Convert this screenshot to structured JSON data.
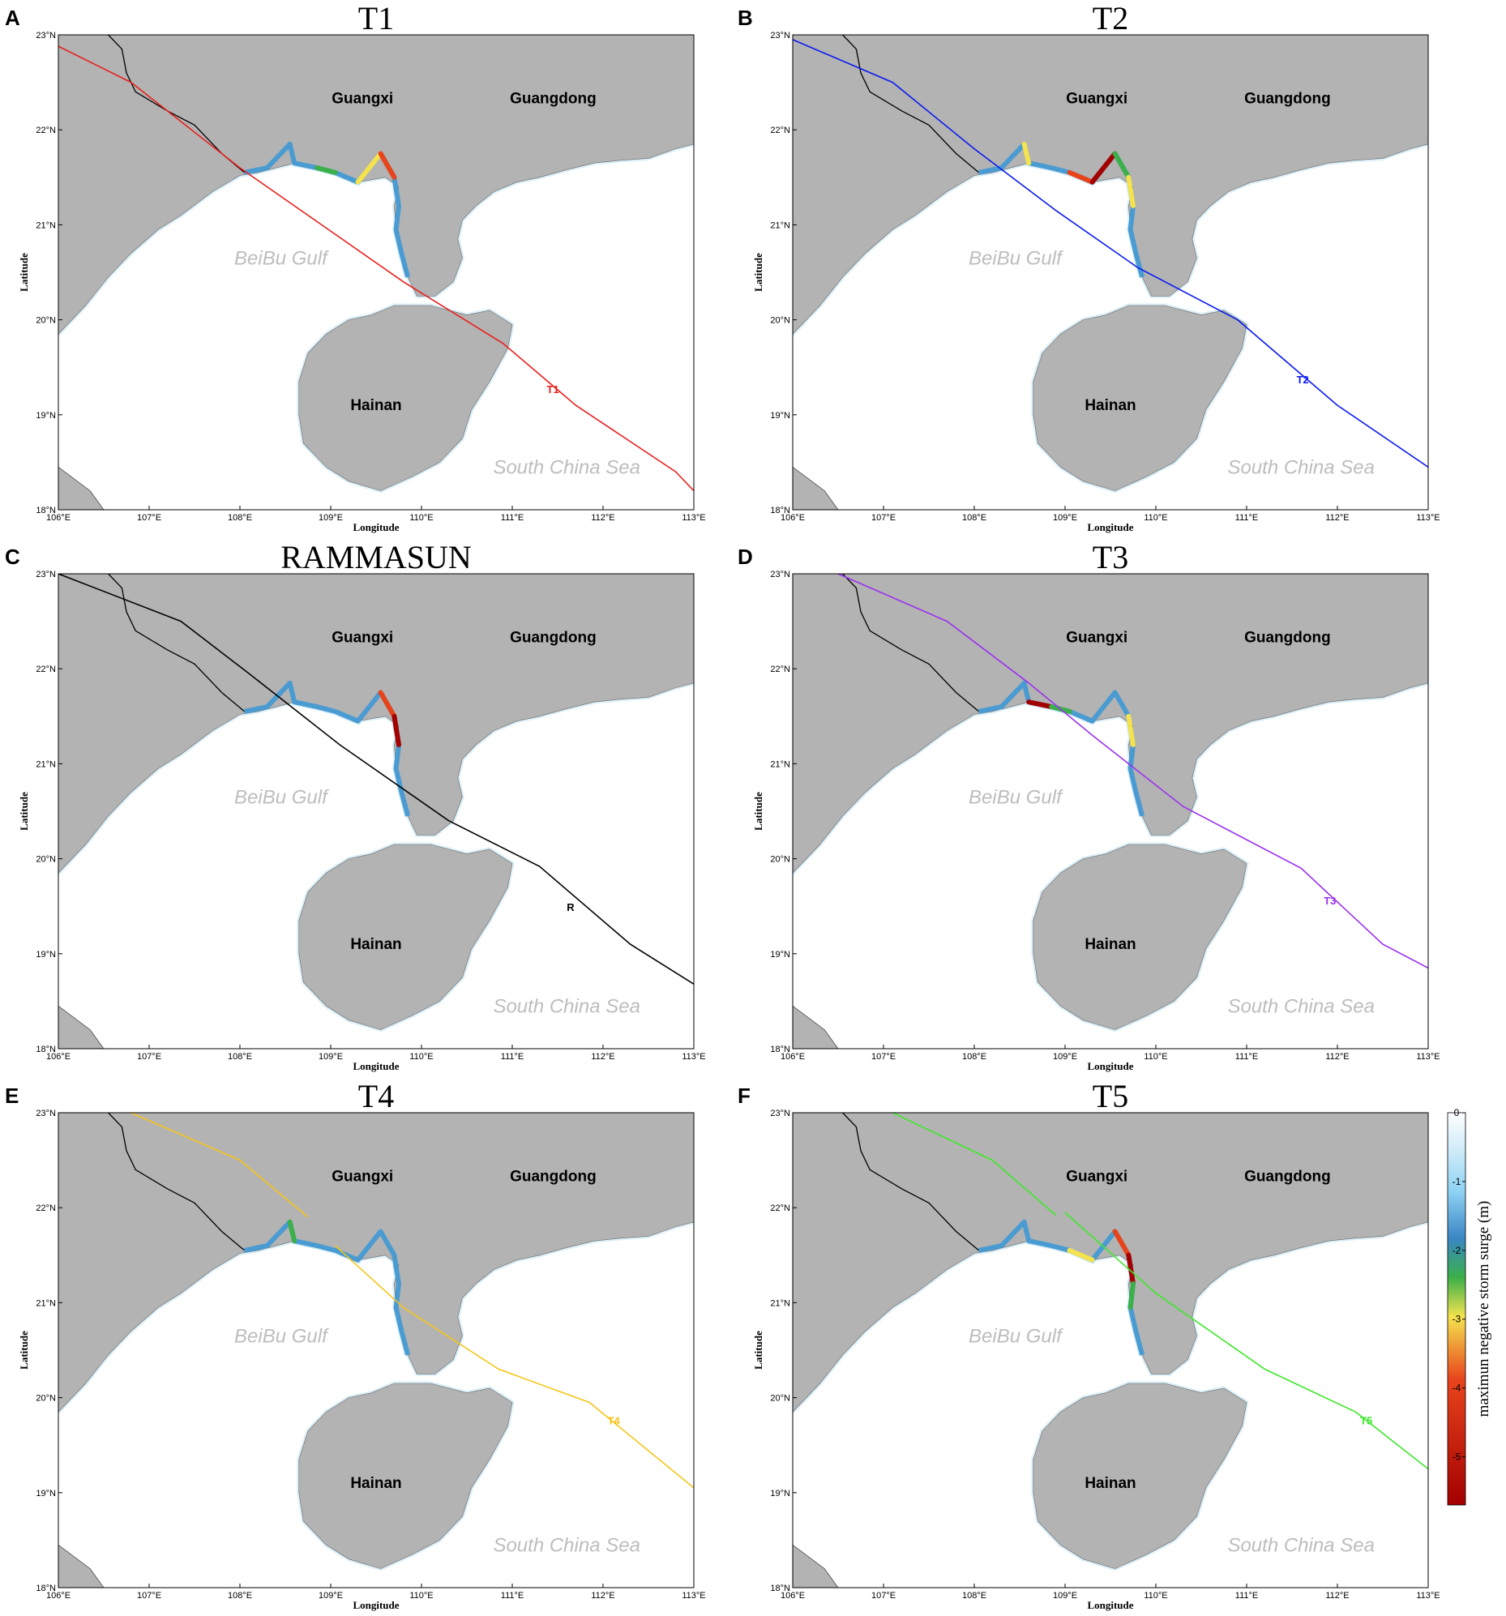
{
  "axes": {
    "x_label": "Longitude",
    "y_label": "Latitude",
    "x_ticks": [
      "106°E",
      "107°E",
      "108°E",
      "109°E",
      "110°E",
      "111°E",
      "112°E",
      "113°E"
    ],
    "y_ticks": [
      "23°N",
      "22°N",
      "21°N",
      "20°N",
      "19°N",
      "18°N"
    ],
    "lon_range": [
      106,
      113
    ],
    "lat_range": [
      18,
      23
    ]
  },
  "places": [
    {
      "name": "Guangxi",
      "lon": 109.35,
      "lat": 22.28,
      "kind": "land"
    },
    {
      "name": "Guangdong",
      "lon": 111.45,
      "lat": 22.28,
      "kind": "land"
    },
    {
      "name": "Hainan",
      "lon": 109.5,
      "lat": 19.05,
      "kind": "land"
    },
    {
      "name": "BeiBu Gulf",
      "lon": 108.45,
      "lat": 20.58,
      "kind": "sea"
    },
    {
      "name": "South China Sea",
      "lon": 111.6,
      "lat": 18.38,
      "kind": "sea"
    }
  ],
  "colors": {
    "land": "#b3b3b3",
    "sea": "#ffffff",
    "surge_shallow": "#d6eefa"
  },
  "panels": [
    {
      "letter": "A",
      "title": "T1",
      "track_label": "T1",
      "track_color": "#e8201c",
      "track_label_pos": [
        111.38,
        19.23
      ],
      "track": [
        [
          106,
          22.88
        ],
        [
          106.8,
          22.5
        ],
        [
          108,
          21.6
        ],
        [
          108.9,
          21
        ],
        [
          109.8,
          20.4
        ],
        [
          110.9,
          19.75
        ],
        [
          111.7,
          19.1
        ],
        [
          112.8,
          18.4
        ],
        [
          113,
          18.2
        ]
      ]
    },
    {
      "letter": "B",
      "title": "T2",
      "track_label": "T2",
      "track_color": "#0a1aef",
      "track_label_pos": [
        111.55,
        19.33
      ],
      "track": [
        [
          106,
          22.95
        ],
        [
          107.1,
          22.5
        ],
        [
          108,
          21.8
        ],
        [
          108.9,
          21.15
        ],
        [
          109.8,
          20.55
        ],
        [
          110.9,
          20
        ],
        [
          112,
          19.1
        ],
        [
          113,
          18.45
        ]
      ]
    },
    {
      "letter": "C",
      "title": "RAMMASUN",
      "track_label": "R",
      "track_color": "#000000",
      "track_label_pos": [
        111.6,
        19.45
      ],
      "track": [
        [
          106,
          23
        ],
        [
          107.35,
          22.5
        ],
        [
          108.1,
          21.95
        ],
        [
          109.1,
          21.2
        ],
        [
          110.3,
          20.4
        ],
        [
          111.3,
          19.92
        ],
        [
          112.3,
          19.1
        ],
        [
          113,
          18.68
        ]
      ]
    },
    {
      "letter": "D",
      "title": "T3",
      "track_label": "T3",
      "track_color": "#9b30ef",
      "track_label_pos": [
        111.85,
        19.52
      ],
      "track": [
        [
          106.5,
          23
        ],
        [
          107.7,
          22.5
        ],
        [
          108.6,
          21.85
        ],
        [
          109.3,
          21.3
        ],
        [
          110.3,
          20.55
        ],
        [
          111.6,
          19.9
        ],
        [
          112.5,
          19.1
        ],
        [
          113,
          18.85
        ]
      ]
    },
    {
      "letter": "E",
      "title": "T4",
      "track_label": "T4",
      "track_color": "#f5c518",
      "track_label_pos": [
        112.05,
        19.72
      ],
      "track": [
        [
          106.8,
          23
        ],
        [
          108,
          22.5
        ],
        [
          108.75,
          21.9
        ]
      ],
      "track2": [
        [
          109.05,
          21.6
        ],
        [
          109.8,
          20.95
        ],
        [
          110.85,
          20.3
        ],
        [
          111.85,
          19.95
        ],
        [
          113,
          19.05
        ]
      ]
    },
    {
      "letter": "F",
      "title": "T5",
      "track_label": "T5",
      "track_color": "#3de82a",
      "track_label_pos": [
        112.25,
        19.72
      ],
      "track": [
        [
          107.1,
          23
        ],
        [
          108.2,
          22.5
        ],
        [
          108.9,
          21.92
        ]
      ],
      "track2": [
        [
          109,
          21.95
        ],
        [
          110,
          21.1
        ],
        [
          111.2,
          20.3
        ],
        [
          112.2,
          19.85
        ],
        [
          113,
          19.25
        ]
      ]
    }
  ],
  "colorbar": {
    "label": "maximun negative storm surge  (m)",
    "ticks": [
      "0",
      "-1",
      "-2",
      "-3",
      "-4",
      "-5"
    ],
    "range": [
      -5.7,
      0
    ],
    "colors": [
      "#ffffff",
      "#8fd3f4",
      "#3a86c4",
      "#3bb04a",
      "#f4e34e",
      "#e8441c",
      "#a30000"
    ]
  }
}
